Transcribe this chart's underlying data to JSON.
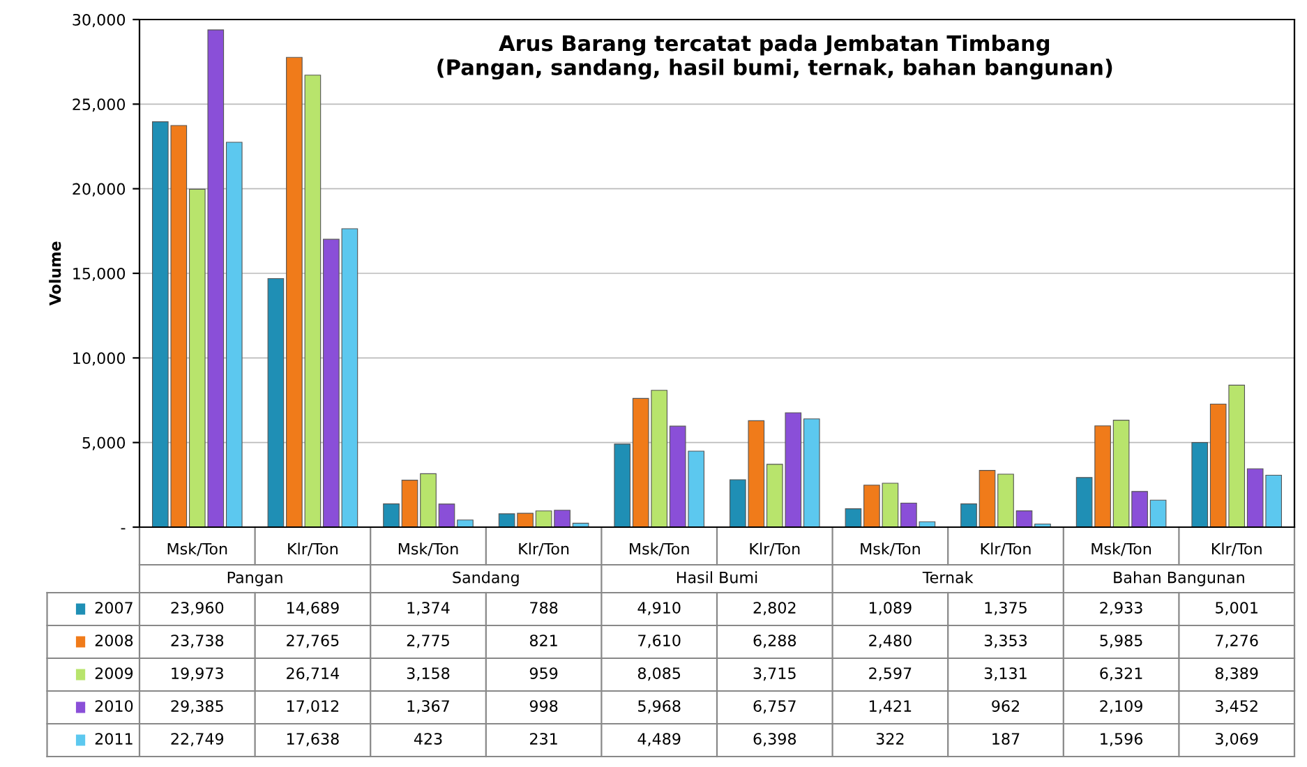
{
  "chart_data": {
    "type": "bar",
    "title": "Arus Barang tercatat pada Jembatan Timbang\n(Pangan, sandang, hasil bumi, ternak, bahan bangunan)",
    "ylabel": "Volume",
    "categories": [
      "Msk/Ton",
      "Klr/Ton",
      "Msk/Ton",
      "Klr/Ton",
      "Msk/Ton",
      "Klr/Ton",
      "Msk/Ton",
      "Klr/Ton",
      "Msk/Ton",
      "Klr/Ton"
    ],
    "annotations": [
      "Pangan",
      "Sandang",
      "Hasil Bumi",
      "Ternak",
      "Bahan Bangunan"
    ],
    "series": [
      {
        "name": "2007",
        "color": "#1f8fb5",
        "values": [
          23960,
          14689,
          1374,
          788,
          4910,
          2802,
          1089,
          1375,
          2933,
          5001
        ],
        "value_labels": [
          "23,960",
          "14,689",
          "1,374",
          "788",
          "4,910",
          "2,802",
          "1,089",
          "1,375",
          "2,933",
          "5,001"
        ]
      },
      {
        "name": "2008",
        "color": "#f07b1a",
        "values": [
          23738,
          27765,
          2775,
          821,
          7610,
          6288,
          2480,
          3353,
          5985,
          7276
        ],
        "value_labels": [
          "23,738",
          "27,765",
          "2,775",
          "821",
          "7,610",
          "6,288",
          "2,480",
          "3,353",
          "5,985",
          "7,276"
        ]
      },
      {
        "name": "2009",
        "color": "#b8e46c",
        "values": [
          19973,
          26714,
          3158,
          959,
          8085,
          3715,
          2597,
          3131,
          6321,
          8389
        ],
        "value_labels": [
          "19,973",
          "26,714",
          "3,158",
          "959",
          "8,085",
          "3,715",
          "2,597",
          "3,131",
          "6,321",
          "8,389"
        ]
      },
      {
        "name": "2010",
        "color": "#8a4fd8",
        "values": [
          29385,
          17012,
          1367,
          998,
          5968,
          6757,
          1421,
          962,
          2109,
          3452
        ],
        "value_labels": [
          "29,385",
          "17,012",
          "1,367",
          "998",
          "5,968",
          "6,757",
          "1,421",
          "962",
          "2,109",
          "3,452"
        ]
      },
      {
        "name": "2011",
        "color": "#5cc8ef",
        "values": [
          22749,
          17638,
          423,
          231,
          4489,
          6398,
          322,
          187,
          1596,
          3069
        ],
        "value_labels": [
          "22,749",
          "17,638",
          "423",
          "231",
          "4,489",
          "6,398",
          "322",
          "187",
          "1,596",
          "3,069"
        ]
      }
    ],
    "ylim": [
      0,
      30000
    ],
    "yticks": [
      {
        "value": 0,
        "label": "-"
      },
      {
        "value": 5000,
        "label": "5,000"
      },
      {
        "value": 10000,
        "label": "10,000"
      },
      {
        "value": 15000,
        "label": "15,000"
      },
      {
        "value": 20000,
        "label": "20,000"
      },
      {
        "value": 25000,
        "label": "25,000"
      },
      {
        "value": 30000,
        "label": "30,000"
      }
    ],
    "grid": "y",
    "legend": "bottom left"
  }
}
